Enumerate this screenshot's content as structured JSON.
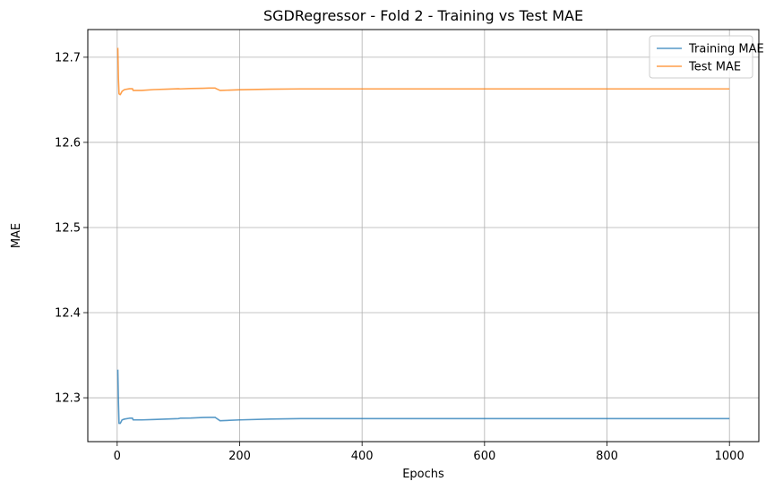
{
  "chart_data": {
    "type": "line",
    "title": "SGDRegressor - Fold 2 - Training vs Test MAE",
    "xlabel": "Epochs",
    "ylabel": "MAE",
    "xlim": [
      -48,
      1048
    ],
    "ylim": [
      12.2485,
      12.7325
    ],
    "xticks": [
      0,
      200,
      400,
      600,
      800,
      1000
    ],
    "yticks": [
      12.3,
      12.4,
      12.5,
      12.6,
      12.7
    ],
    "xtick_labels": [
      "0",
      "200",
      "400",
      "600",
      "800",
      "1000"
    ],
    "ytick_labels": [
      "12.3",
      "12.4",
      "12.5",
      "12.6",
      "12.7"
    ],
    "grid": true,
    "legend_position": "top-right",
    "series": [
      {
        "name": "Training MAE",
        "color": "#1f77b4",
        "x": [
          1,
          2,
          3,
          5,
          8,
          12,
          20,
          25,
          26,
          40,
          60,
          80,
          100,
          103,
          120,
          140,
          150,
          160,
          162,
          168,
          200,
          250,
          300,
          400,
          500,
          600,
          700,
          800,
          900,
          1000
        ],
        "y": [
          12.333,
          12.296,
          12.27,
          12.27,
          12.274,
          12.275,
          12.276,
          12.276,
          12.274,
          12.274,
          12.2745,
          12.275,
          12.2755,
          12.276,
          12.2762,
          12.2768,
          12.277,
          12.277,
          12.276,
          12.273,
          12.274,
          12.275,
          12.2755,
          12.2755,
          12.2755,
          12.2755,
          12.2755,
          12.2755,
          12.2755,
          12.2755
        ]
      },
      {
        "name": "Test MAE",
        "color": "#ff7f0e",
        "x": [
          1,
          2,
          3,
          5,
          8,
          12,
          20,
          25,
          26,
          40,
          60,
          80,
          100,
          103,
          120,
          140,
          150,
          160,
          162,
          168,
          200,
          250,
          300,
          400,
          500,
          600,
          700,
          800,
          900,
          1000
        ],
        "y": [
          12.711,
          12.675,
          12.657,
          12.656,
          12.66,
          12.662,
          12.663,
          12.663,
          12.661,
          12.661,
          12.662,
          12.6625,
          12.663,
          12.6628,
          12.6632,
          12.6635,
          12.6638,
          12.6638,
          12.663,
          12.661,
          12.6618,
          12.6625,
          12.6628,
          12.6628,
          12.6628,
          12.6628,
          12.6628,
          12.6628,
          12.6628,
          12.6628
        ]
      }
    ]
  }
}
